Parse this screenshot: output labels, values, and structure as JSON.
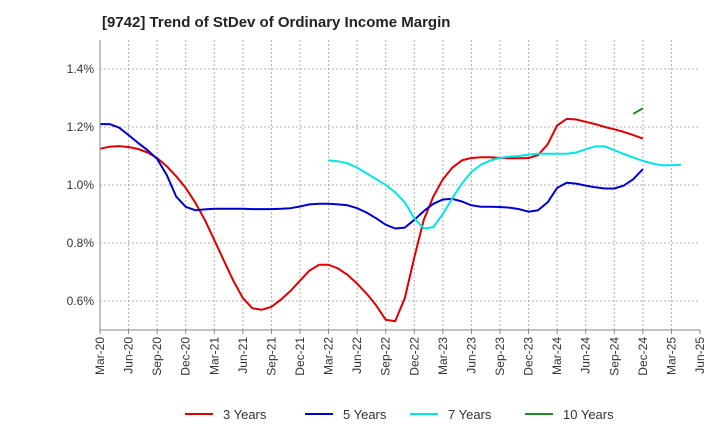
{
  "title": "[9742]  Trend of StDev of Ordinary Income Margin",
  "chart_data": {
    "type": "line",
    "title": "[9742]  Trend of StDev of Ordinary Income Margin",
    "xlabel": "",
    "ylabel": "",
    "x_ticks": [
      "Mar-20",
      "Jun-20",
      "Sep-20",
      "Dec-20",
      "Mar-21",
      "Jun-21",
      "Sep-21",
      "Dec-21",
      "Mar-22",
      "Jun-22",
      "Sep-22",
      "Dec-22",
      "Mar-23",
      "Jun-23",
      "Sep-23",
      "Dec-23",
      "Mar-24",
      "Jun-24",
      "Sep-24",
      "Dec-24",
      "Mar-25",
      "Jun-25"
    ],
    "y_ticks": [
      "0.6%",
      "0.8%",
      "1.0%",
      "1.2%",
      "1.4%"
    ],
    "y_tick_values": [
      0.6,
      0.8,
      1.0,
      1.2,
      1.4
    ],
    "ylim": [
      0.5,
      1.5
    ],
    "grid": true,
    "legend_position": "bottom",
    "series": [
      {
        "name": "3 Years",
        "color": "#dd0000",
        "start_month_index": 0,
        "values": [
          1.125,
          1.132,
          1.134,
          1.131,
          1.124,
          1.112,
          1.093,
          1.065,
          1.03,
          0.99,
          0.94,
          0.88,
          0.81,
          0.74,
          0.67,
          0.61,
          0.575,
          0.57,
          0.58,
          0.605,
          0.635,
          0.67,
          0.705,
          0.725,
          0.725,
          0.712,
          0.69,
          0.66,
          0.625,
          0.585,
          0.535,
          0.53,
          0.61,
          0.75,
          0.88,
          0.96,
          1.02,
          1.06,
          1.085,
          1.093,
          1.096,
          1.096,
          1.093,
          1.092,
          1.092,
          1.093,
          1.103,
          1.14,
          1.205,
          1.228,
          1.226,
          1.218,
          1.21,
          1.2,
          1.192,
          1.183,
          1.172,
          1.16
        ]
      },
      {
        "name": "5 Years",
        "color": "#0000cc",
        "start_month_index": 0,
        "values": [
          1.21,
          1.21,
          1.198,
          1.172,
          1.145,
          1.12,
          1.09,
          1.035,
          0.96,
          0.925,
          0.913,
          0.916,
          0.918,
          0.918,
          0.918,
          0.918,
          0.917,
          0.917,
          0.917,
          0.918,
          0.92,
          0.926,
          0.933,
          0.935,
          0.935,
          0.933,
          0.93,
          0.92,
          0.905,
          0.885,
          0.863,
          0.85,
          0.853,
          0.88,
          0.91,
          0.935,
          0.95,
          0.952,
          0.943,
          0.93,
          0.925,
          0.925,
          0.924,
          0.922,
          0.917,
          0.908,
          0.913,
          0.94,
          0.99,
          1.008,
          1.005,
          0.998,
          0.992,
          0.988,
          0.988,
          0.998,
          1.02,
          1.055
        ]
      },
      {
        "name": "7 Years",
        "color": "#00e5e5",
        "start_month_index": 24,
        "values": [
          1.085,
          1.082,
          1.075,
          1.06,
          1.04,
          1.02,
          1.0,
          0.975,
          0.94,
          0.885,
          0.85,
          0.855,
          0.9,
          0.955,
          1.005,
          1.045,
          1.07,
          1.085,
          1.093,
          1.098,
          1.1,
          1.105,
          1.108,
          1.108,
          1.108,
          1.108,
          1.112,
          1.123,
          1.133,
          1.133,
          1.12,
          1.107,
          1.095,
          1.083,
          1.074,
          1.068,
          1.068,
          1.07
        ]
      },
      {
        "name": "10 Years",
        "color": "#228822",
        "start_month_index": 56,
        "values": [
          1.245,
          1.265
        ]
      }
    ]
  }
}
